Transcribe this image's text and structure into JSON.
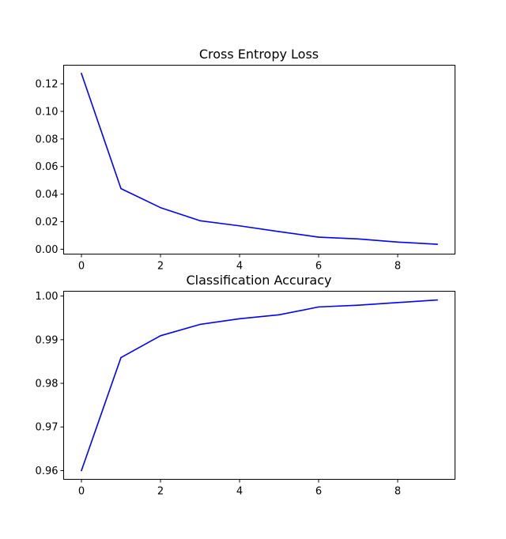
{
  "chart_data": [
    {
      "type": "line",
      "title": "Cross Entropy Loss",
      "xlabel": "",
      "ylabel": "",
      "x": [
        0,
        1,
        2,
        3,
        4,
        5,
        6,
        7,
        8,
        9
      ],
      "series": [
        {
          "values": [
            0.1275,
            0.044,
            0.0302,
            0.0207,
            0.017,
            0.0128,
            0.0088,
            0.0075,
            0.0052,
            0.0036
          ],
          "color": "#0000ff"
        }
      ],
      "xlim": [
        -0.45,
        9.45
      ],
      "ylim": [
        -0.0035,
        0.1335
      ],
      "xticks": [
        0,
        2,
        4,
        6,
        8
      ],
      "xtick_labels": [
        "0",
        "2",
        "4",
        "6",
        "8"
      ],
      "yticks": [
        0.0,
        0.02,
        0.04,
        0.06,
        0.08,
        0.1,
        0.12
      ],
      "ytick_labels": [
        "0.00",
        "0.02",
        "0.04",
        "0.06",
        "0.08",
        "0.10",
        "0.12"
      ],
      "grid": false,
      "legend": "none"
    },
    {
      "type": "line",
      "title": "Classification Accuracy",
      "xlabel": "",
      "ylabel": "",
      "x": [
        0,
        1,
        2,
        3,
        4,
        5,
        6,
        7,
        8,
        9
      ],
      "series": [
        {
          "values": [
            0.96,
            0.9859,
            0.9909,
            0.9935,
            0.9948,
            0.9957,
            0.9975,
            0.9979,
            0.9985,
            0.9991
          ],
          "color": "#0000ff"
        }
      ],
      "xlim": [
        -0.45,
        9.45
      ],
      "ylim": [
        0.958,
        1.0011
      ],
      "xticks": [
        0,
        2,
        4,
        6,
        8
      ],
      "xtick_labels": [
        "0",
        "2",
        "4",
        "6",
        "8"
      ],
      "yticks": [
        0.96,
        0.97,
        0.98,
        0.99,
        1.0
      ],
      "ytick_labels": [
        "0.96",
        "0.97",
        "0.98",
        "0.99",
        "1.00"
      ],
      "grid": false,
      "legend": "none"
    }
  ]
}
